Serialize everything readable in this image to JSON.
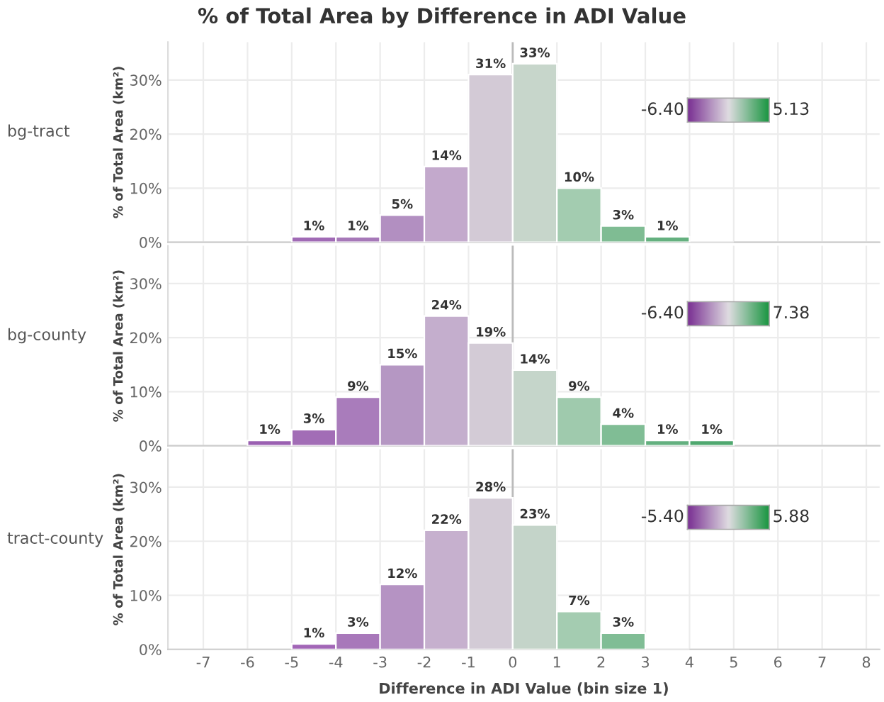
{
  "chart_data": [
    {
      "type": "histogram",
      "title": "% of Total Area by Difference in ADI Value",
      "subtitle": "bg-tract",
      "ylabel": "% of Total Area (km²)",
      "bins": [
        -5,
        -4,
        -3,
        -2,
        -1,
        0,
        1,
        2,
        3,
        4,
        5
      ],
      "values": [
        1,
        1,
        5,
        14,
        31,
        33,
        10,
        3,
        1,
        null
      ],
      "value_labels": [
        "1%",
        "1%",
        "5%",
        "14%",
        "31%",
        "33%",
        "10%",
        "3%",
        "1%",
        null
      ],
      "colors": [
        "#a06ab5",
        "#a678b8",
        "#b28fc1",
        "#c3a9cc",
        "#d3cad6",
        "#c7d6cb",
        "#a3ccb0",
        "#7fbc93",
        "#64b07f",
        "#4fa86f"
      ],
      "annotations": [
        "-6.40",
        "5.13"
      ],
      "xlim": [
        -7.8,
        8.3
      ],
      "ylim": [
        0,
        37
      ],
      "yticks": [
        {
          "value": 0,
          "label": "0%"
        },
        {
          "value": 10,
          "label": "10%"
        },
        {
          "value": 20,
          "label": "20%"
        },
        {
          "value": 30,
          "label": "30%"
        }
      ],
      "ref_lines": [
        {
          "axis": "x",
          "value": 0
        }
      ],
      "grid": true,
      "tick_labels": "y"
    },
    {
      "type": "histogram",
      "subtitle": "bg-county",
      "ylabel": "% of Total Area (km²)",
      "bins": [
        -6,
        -5,
        -4,
        -3,
        -2,
        -1,
        0,
        1,
        2,
        3,
        4,
        5
      ],
      "values": [
        1,
        3,
        9,
        15,
        24,
        19,
        14,
        9,
        4,
        1,
        1
      ],
      "value_labels": [
        "1%",
        "3%",
        "9%",
        "15%",
        "24%",
        "19%",
        "14%",
        "9%",
        "4%",
        "1%",
        "1%"
      ],
      "colors": [
        "#9a5fb1",
        "#a26db6",
        "#a97cbb",
        "#b597c3",
        "#c4aecd",
        "#d3cbd6",
        "#c5d5ca",
        "#9fcaad",
        "#80bd95",
        "#63b07f",
        "#4fa86f"
      ],
      "annotations": [
        "-6.40",
        "7.38"
      ],
      "xlim": [
        -7.8,
        8.3
      ],
      "ylim": [
        0,
        37
      ],
      "yticks": [
        {
          "value": 0,
          "label": "0%"
        },
        {
          "value": 10,
          "label": "10%"
        },
        {
          "value": 20,
          "label": "20%"
        },
        {
          "value": 30,
          "label": "30%"
        }
      ],
      "ref_lines": [
        {
          "axis": "x",
          "value": 0
        }
      ],
      "grid": true,
      "tick_labels": "y"
    },
    {
      "type": "histogram",
      "subtitle": "tract-county",
      "ylabel": "% of Total Area (km²)",
      "xlabel": "Difference in ADI Value (bin size 1)",
      "bins": [
        -5,
        -4,
        -3,
        -2,
        -1,
        0,
        1,
        2,
        3,
        4
      ],
      "values": [
        1,
        3,
        12,
        22,
        28,
        23,
        7,
        3,
        null
      ],
      "value_labels": [
        "1%",
        "3%",
        "12%",
        "22%",
        "28%",
        "23%",
        "7%",
        "3%",
        null
      ],
      "colors": [
        "#a266b7",
        "#a878ba",
        "#b593c3",
        "#c6b0ce",
        "#d3cbd6",
        "#c4d4c9",
        "#a4ccb1",
        "#80bd95",
        "#5fae7a"
      ],
      "annotations": [
        "-5.40",
        "5.88"
      ],
      "xlim": [
        -7.8,
        8.3
      ],
      "xticks": [
        -7,
        -6,
        -5,
        -4,
        -3,
        -2,
        -1,
        0,
        1,
        2,
        3,
        4,
        5,
        6,
        7,
        8
      ],
      "ylim": [
        0,
        37
      ],
      "yticks": [
        {
          "value": 0,
          "label": "0%"
        },
        {
          "value": 10,
          "label": "10%"
        },
        {
          "value": 20,
          "label": "20%"
        },
        {
          "value": 30,
          "label": "30%"
        }
      ],
      "ref_lines": [
        {
          "axis": "x",
          "value": 0
        }
      ],
      "grid": true
    }
  ]
}
